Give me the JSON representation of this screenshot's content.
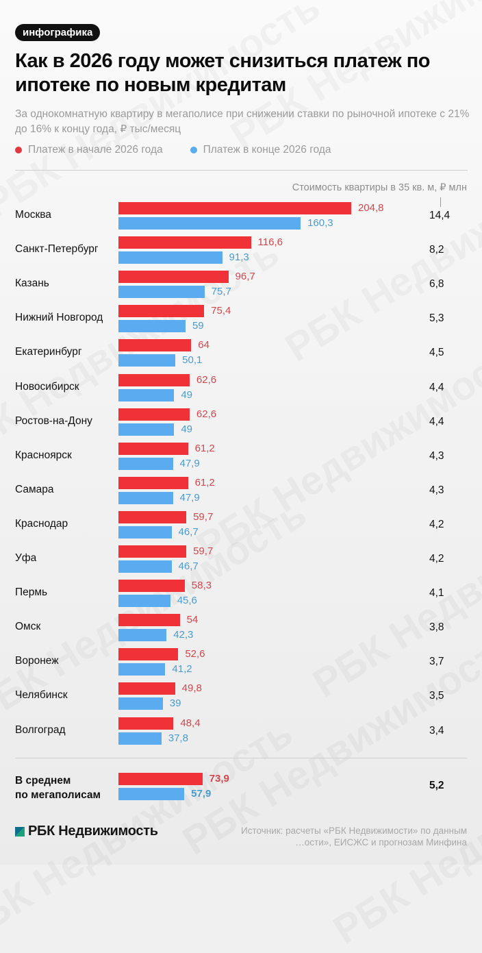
{
  "badge": "инфографика",
  "title": "Как в 2026 году может снизиться платеж по ипотеке по новым кредитам",
  "subtitle": "За однокомнатную квартиру в мегаполисе при снижении ставки по рыночной ипотеке с 21% до 16% к концу года, ₽ тыс/месяц",
  "legend": [
    {
      "label": "Платеж в начале 2026 года",
      "color": "#e03a40"
    },
    {
      "label": "Платеж в конце 2026 года",
      "color": "#5aabf0"
    }
  ],
  "column_header": "Стоимость квартиры в 35 кв. м, ₽ млн",
  "rows": [
    {
      "city": "Москва",
      "start": "204,8",
      "end": "160,3",
      "price": "14,4"
    },
    {
      "city": "Санкт-Петербург",
      "start": "116,6",
      "end": "91,3",
      "price": "8,2"
    },
    {
      "city": "Казань",
      "start": "96,7",
      "end": "75,7",
      "price": "6,8"
    },
    {
      "city": "Нижний Новгород",
      "start": "75,4",
      "end": "59",
      "price": "5,3"
    },
    {
      "city": "Екатеринбург",
      "start": "64",
      "end": "50,1",
      "price": "4,5"
    },
    {
      "city": "Новосибирск",
      "start": "62,6",
      "end": "49",
      "price": "4,4"
    },
    {
      "city": "Ростов-на-Дону",
      "start": "62,6",
      "end": "49",
      "price": "4,4"
    },
    {
      "city": "Красноярск",
      "start": "61,2",
      "end": "47,9",
      "price": "4,3"
    },
    {
      "city": "Самара",
      "start": "61,2",
      "end": "47,9",
      "price": "4,3"
    },
    {
      "city": "Краснодар",
      "start": "59,7",
      "end": "46,7",
      "price": "4,2"
    },
    {
      "city": "Уфа",
      "start": "59,7",
      "end": "46,7",
      "price": "4,2"
    },
    {
      "city": "Пермь",
      "start": "58,3",
      "end": "45,6",
      "price": "4,1"
    },
    {
      "city": "Омск",
      "start": "54",
      "end": "42,3",
      "price": "3,8"
    },
    {
      "city": "Воронеж",
      "start": "52,6",
      "end": "41,2",
      "price": "3,7"
    },
    {
      "city": "Челябинск",
      "start": "49,8",
      "end": "39",
      "price": "3,5"
    },
    {
      "city": "Волгоград",
      "start": "48,4",
      "end": "37,8",
      "price": "3,4"
    }
  ],
  "average": {
    "line1": "В среднем",
    "line2": "по мегаполисам",
    "start": "73,9",
    "end": "57,9",
    "price": "5,2"
  },
  "footer": {
    "logo": "РБК Недвижимость",
    "source_line1": "Источник: расчеты «РБК Недвижимости» по данным",
    "source_line2": "…ости», ЕИСЖС и прогнозам Минфина"
  },
  "watermark_text": "РБК Недвижимость",
  "colors": {
    "red_bar": "#f03238",
    "blue_bar": "#5aabf0",
    "red_label": "#d0474d",
    "blue_label": "#4a9bcf",
    "logo_green": "#1aa37a"
  },
  "chart_data": {
    "type": "bar",
    "orientation": "horizontal",
    "title": "Как в 2026 году может снизиться платеж по ипотеке по новым кредитам",
    "subtitle": "За однокомнатную квартиру в мегаполисе при снижении ставки по рыночной ипотеке с 21% до 16% к концу года, ₽ тыс/месяц",
    "xlabel": "₽ тыс/месяц",
    "ylabel": "",
    "categories": [
      "Москва",
      "Санкт-Петербург",
      "Казань",
      "Нижний Новгород",
      "Екатеринбург",
      "Новосибирск",
      "Ростов-на-Дону",
      "Красноярск",
      "Самара",
      "Краснодар",
      "Уфа",
      "Пермь",
      "Омск",
      "Воронеж",
      "Челябинск",
      "Волгоград",
      "В среднем по мегаполисам"
    ],
    "series": [
      {
        "name": "Платеж в начале 2026 года",
        "color": "#f03238",
        "values": [
          204.8,
          116.6,
          96.7,
          75.4,
          64,
          62.6,
          62.6,
          61.2,
          61.2,
          59.7,
          59.7,
          58.3,
          54,
          52.6,
          49.8,
          48.4,
          73.9
        ]
      },
      {
        "name": "Платеж в конце 2026 года",
        "color": "#5aabf0",
        "values": [
          160.3,
          91.3,
          75.7,
          59,
          50.1,
          49,
          49,
          47.9,
          47.9,
          46.7,
          46.7,
          45.6,
          42.3,
          41.2,
          39,
          37.8,
          57.9
        ]
      }
    ],
    "extra_column": {
      "name": "Стоимость квартиры в 35 кв. м, ₽ млн",
      "values": [
        14.4,
        8.2,
        6.8,
        5.3,
        4.5,
        4.4,
        4.4,
        4.3,
        4.3,
        4.2,
        4.2,
        4.1,
        3.8,
        3.7,
        3.5,
        3.4,
        5.2
      ]
    },
    "legend_position": "top",
    "grid": false,
    "data_labels": true,
    "xlim": [
      0,
      210
    ]
  }
}
